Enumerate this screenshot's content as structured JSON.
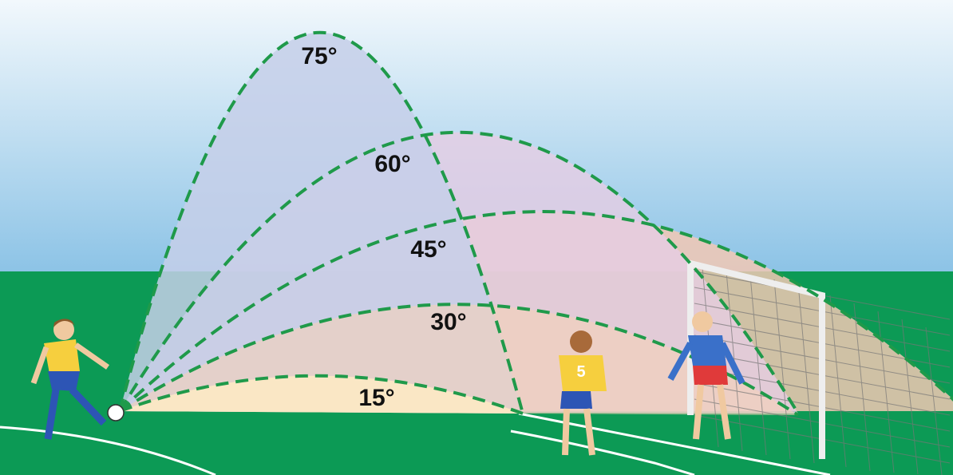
{
  "trajectories": [
    {
      "label": "75°"
    },
    {
      "label": "60°"
    },
    {
      "label": "45°"
    },
    {
      "label": "30°"
    },
    {
      "label": "15°"
    }
  ],
  "player_number": "5"
}
